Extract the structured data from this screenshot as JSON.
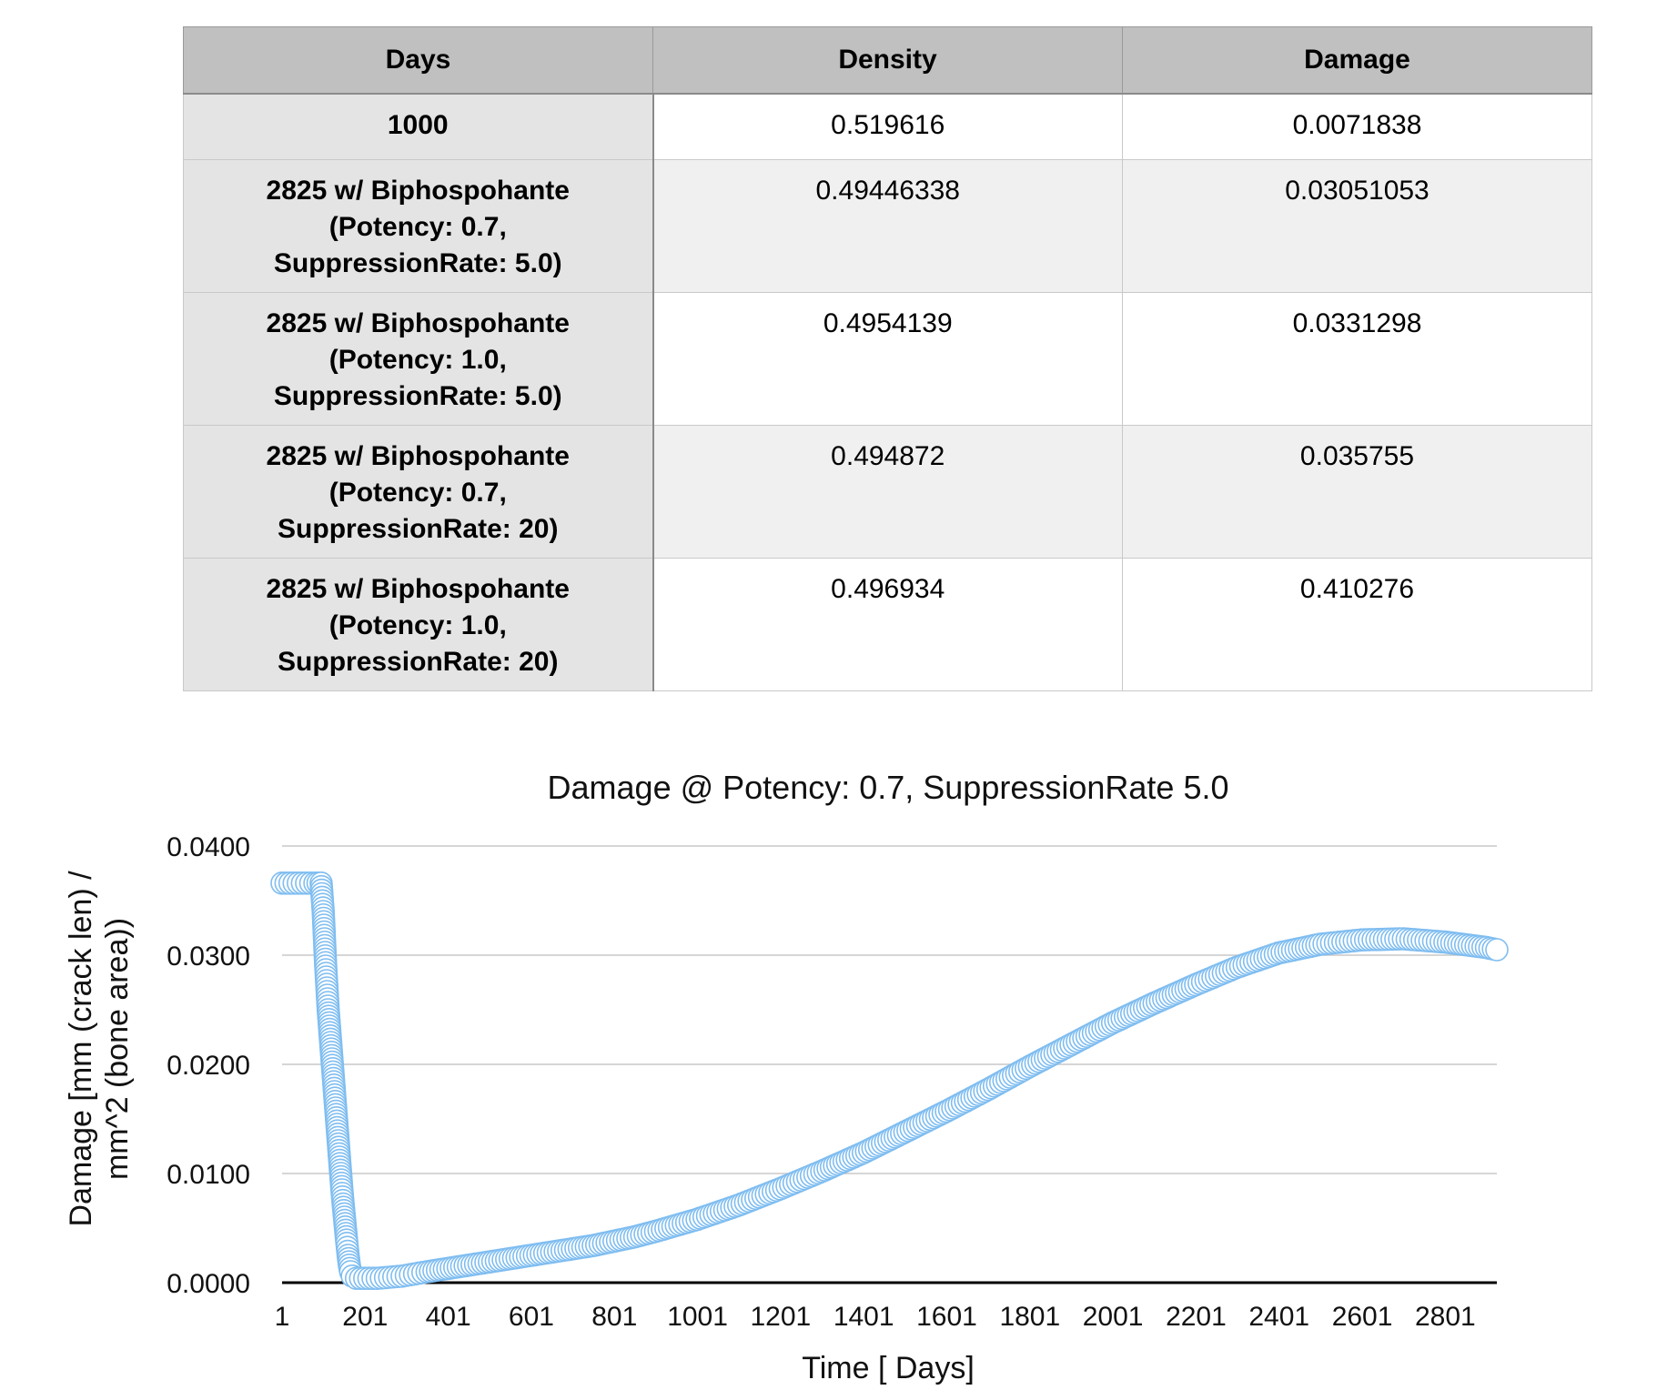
{
  "table": {
    "headers": [
      "Days",
      "Density",
      "Damage"
    ],
    "rows": [
      {
        "days_lines": [
          "1000"
        ],
        "density": "0.519616",
        "damage": "0.0071838"
      },
      {
        "days_lines": [
          "2825 w/ Biphospohante",
          "(Potency: 0.7,",
          "SuppressionRate: 5.0)"
        ],
        "density": "0.49446338",
        "damage": "0.03051053"
      },
      {
        "days_lines": [
          "2825 w/ Biphospohante",
          "(Potency: 1.0,",
          "SuppressionRate: 5.0)"
        ],
        "density": "0.4954139",
        "damage": "0.0331298"
      },
      {
        "days_lines": [
          "2825 w/ Biphospohante",
          "(Potency: 0.7,",
          "SuppressionRate: 20)"
        ],
        "density": "0.494872",
        "damage": "0.035755"
      },
      {
        "days_lines": [
          "2825 w/ Biphospohante",
          "(Potency: 1.0,",
          "SuppressionRate: 20)"
        ],
        "density": "0.496934",
        "damage": "0.410276"
      }
    ]
  },
  "chart_data": {
    "type": "scatter",
    "title": "Damage @ Potency: 0.7, SuppressionRate 5.0",
    "xlabel": "Time [ Days]",
    "ylabel_lines": [
      "Damage [mm (crack len) /",
      "mm^2 (bone area))"
    ],
    "x_ticks": [
      "1",
      "201",
      "401",
      "601",
      "801",
      "1001",
      "1201",
      "1401",
      "1601",
      "1801",
      "2001",
      "2201",
      "2401",
      "2601",
      "2801"
    ],
    "y_ticks": [
      "0.0000",
      "0.0100",
      "0.0200",
      "0.0300",
      "0.0400"
    ],
    "xlim": [
      1,
      2925
    ],
    "ylim": [
      0,
      0.04
    ],
    "grid": true,
    "marker_color": "#7fbdf0",
    "series": [
      {
        "points": [
          [
            1,
            0.0366
          ],
          [
            20,
            0.0366
          ],
          [
            40,
            0.0366
          ],
          [
            60,
            0.0366
          ],
          [
            80,
            0.0366
          ],
          [
            95,
            0.0366
          ],
          [
            100,
            0.034
          ],
          [
            103,
            0.0315
          ],
          [
            106,
            0.029
          ],
          [
            109,
            0.027
          ],
          [
            112,
            0.025
          ],
          [
            115,
            0.0235
          ],
          [
            118,
            0.022
          ],
          [
            121,
            0.0205
          ],
          [
            124,
            0.019
          ],
          [
            127,
            0.0175
          ],
          [
            130,
            0.016
          ],
          [
            133,
            0.0145
          ],
          [
            136,
            0.013
          ],
          [
            139,
            0.0115
          ],
          [
            142,
            0.01
          ],
          [
            145,
            0.0085
          ],
          [
            148,
            0.0072
          ],
          [
            151,
            0.006
          ],
          [
            154,
            0.0048
          ],
          [
            157,
            0.0036
          ],
          [
            160,
            0.0025
          ],
          [
            163,
            0.0016
          ],
          [
            166,
            0.001
          ],
          [
            170,
            0.0006
          ],
          [
            180,
            0.0004
          ],
          [
            200,
            0.0004
          ],
          [
            230,
            0.0004
          ],
          [
            260,
            0.0005
          ],
          [
            290,
            0.0006
          ],
          [
            320,
            0.0008
          ],
          [
            350,
            0.001
          ],
          [
            400,
            0.0013
          ],
          [
            450,
            0.0016
          ],
          [
            500,
            0.0019
          ],
          [
            550,
            0.0022
          ],
          [
            600,
            0.0025
          ],
          [
            650,
            0.0028
          ],
          [
            700,
            0.0031
          ],
          [
            750,
            0.0034
          ],
          [
            800,
            0.0038
          ],
          [
            850,
            0.0042
          ],
          [
            900,
            0.0047
          ],
          [
            1000,
            0.0058
          ],
          [
            1100,
            0.0071
          ],
          [
            1200,
            0.0086
          ],
          [
            1300,
            0.0102
          ],
          [
            1400,
            0.0119
          ],
          [
            1500,
            0.0138
          ],
          [
            1600,
            0.0157
          ],
          [
            1700,
            0.0177
          ],
          [
            1800,
            0.0198
          ],
          [
            1900,
            0.0218
          ],
          [
            2000,
            0.0238
          ],
          [
            2100,
            0.0256
          ],
          [
            2200,
            0.0273
          ],
          [
            2300,
            0.0289
          ],
          [
            2400,
            0.0302
          ],
          [
            2500,
            0.031
          ],
          [
            2600,
            0.0314
          ],
          [
            2700,
            0.0315
          ],
          [
            2800,
            0.0312
          ],
          [
            2900,
            0.0307
          ],
          [
            2925,
            0.0305
          ]
        ]
      }
    ]
  }
}
